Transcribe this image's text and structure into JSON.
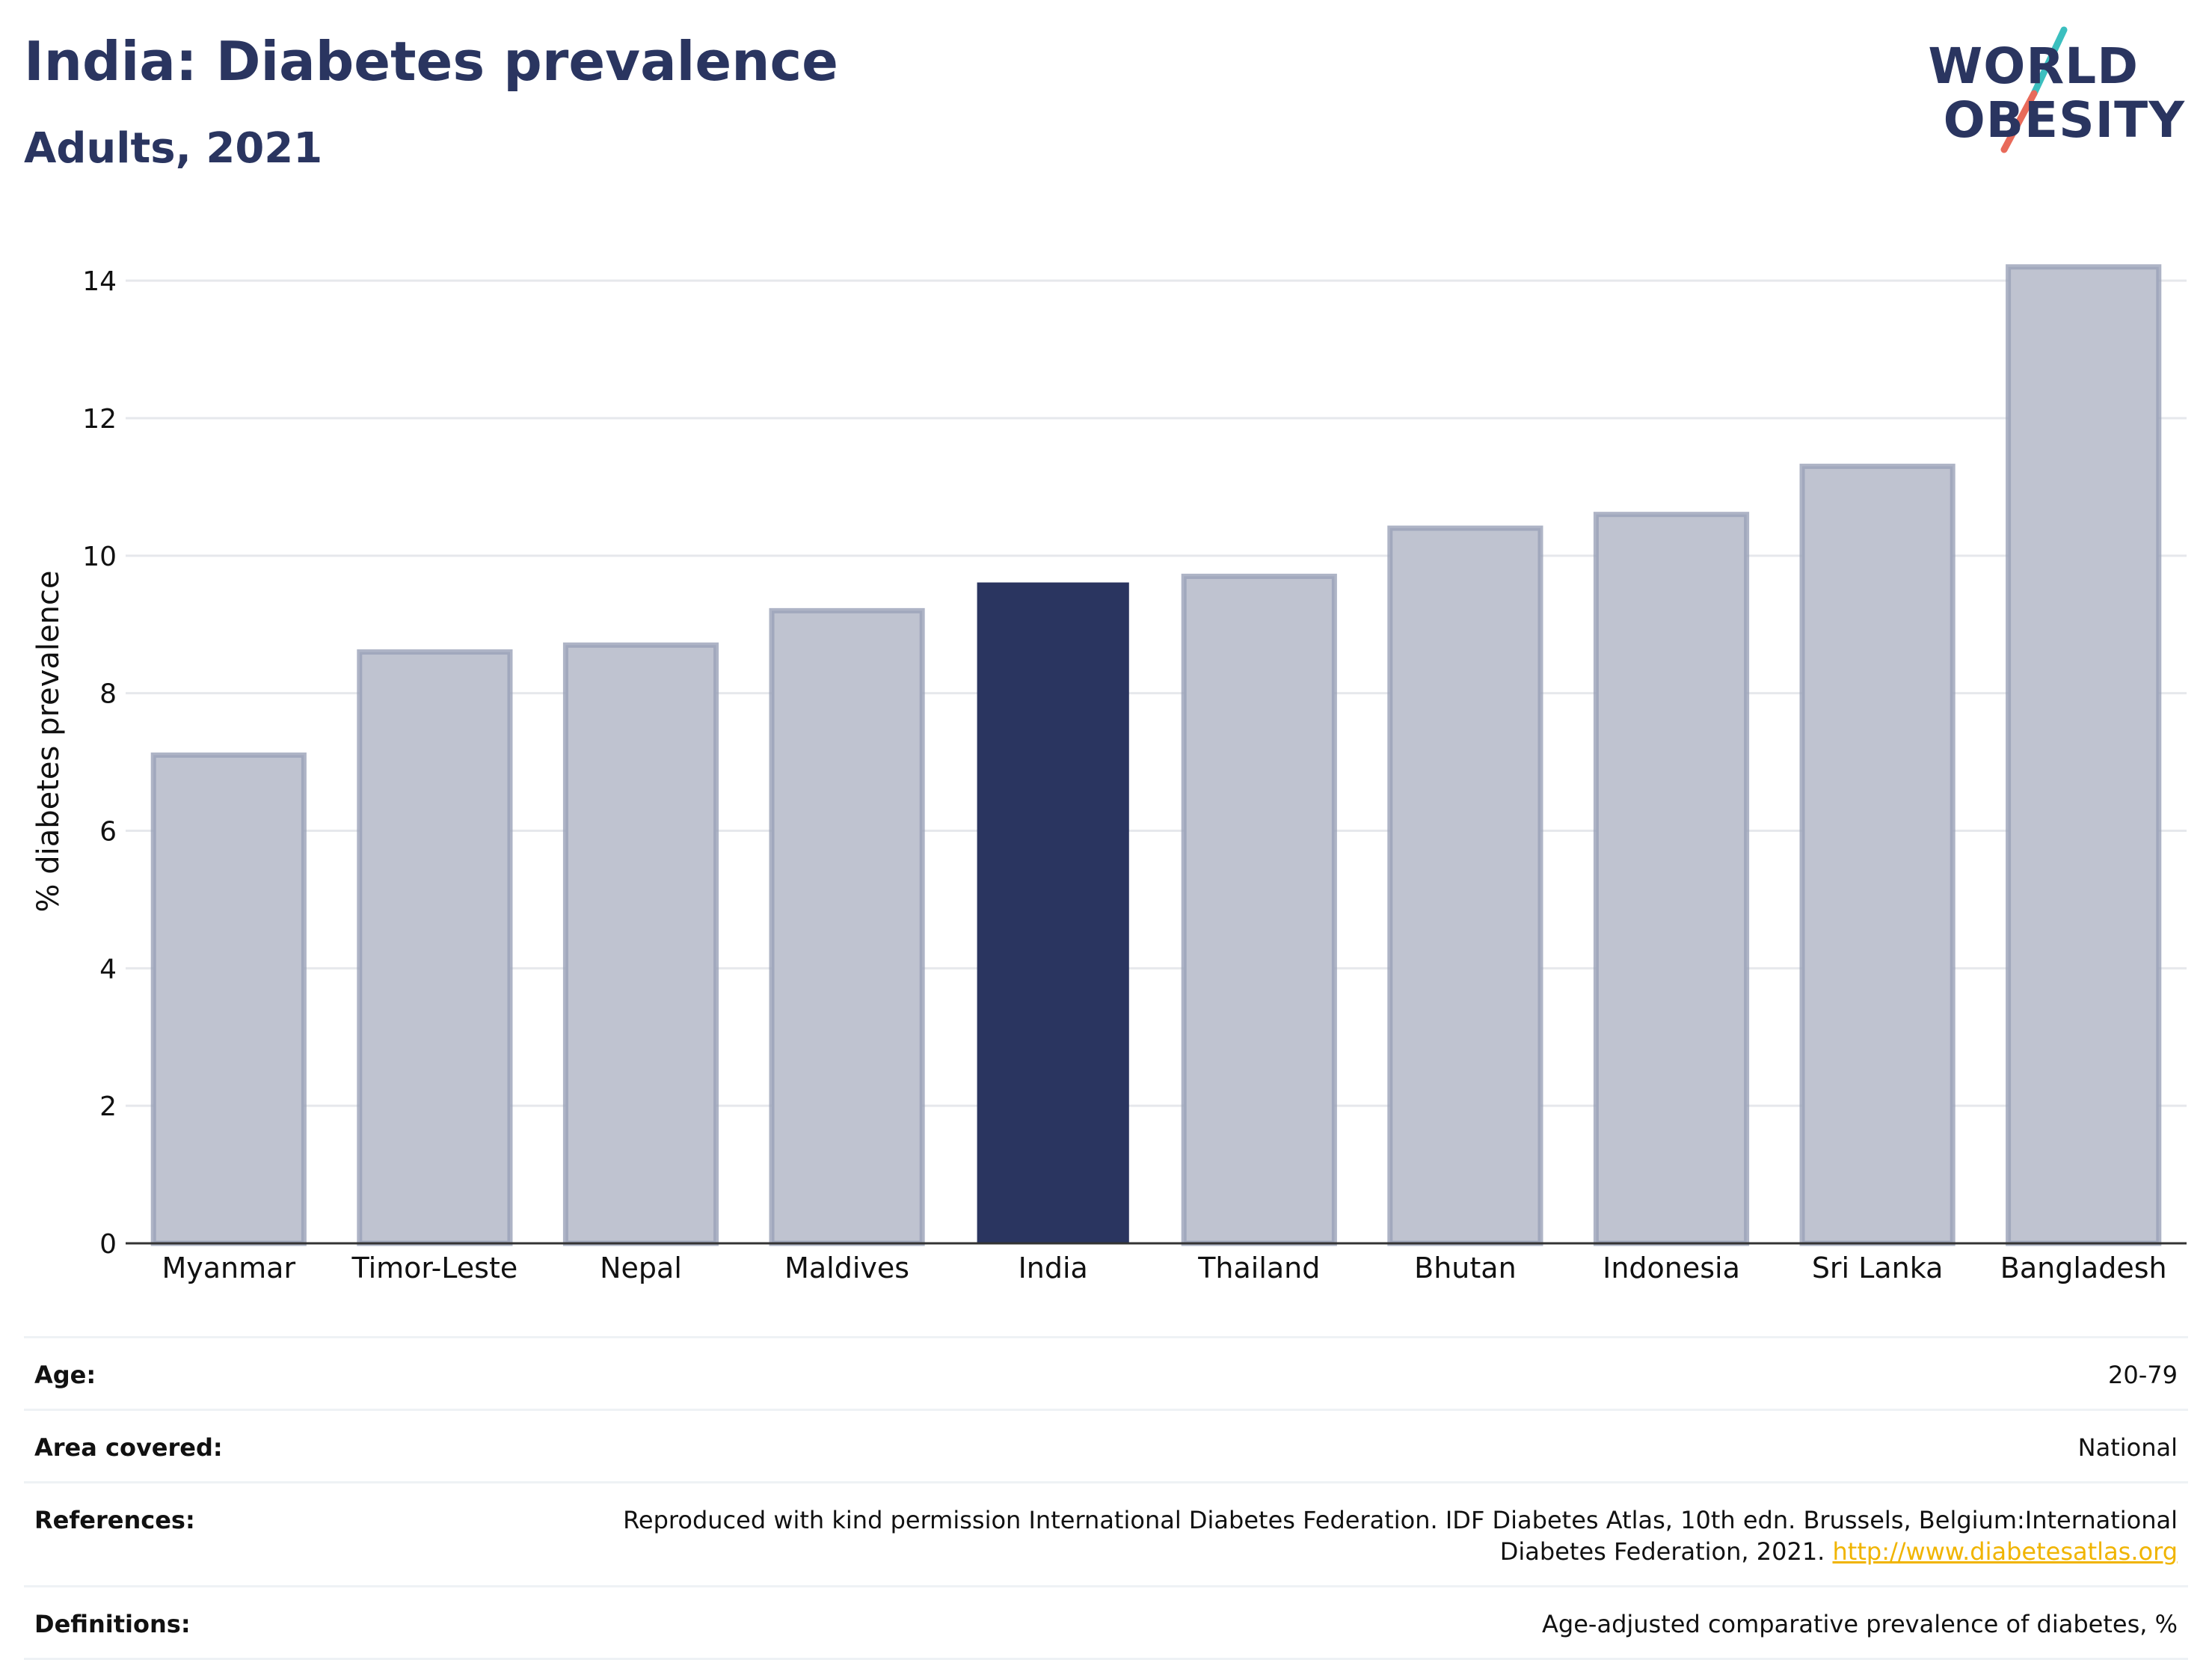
{
  "header": {
    "title": "India: Diabetes prevalence",
    "subtitle": "Adults, 2021"
  },
  "logo": {
    "line1": "WORLD",
    "line2": "OBESITY",
    "icon": "world-obesity-slash-logo",
    "slash_colors": [
      "#3bbfbf",
      "#e86a5a"
    ]
  },
  "chart_data": {
    "type": "bar",
    "title": "India: Diabetes prevalence",
    "subtitle": "Adults, 2021",
    "xlabel": "",
    "ylabel": "% diabetes prevalence",
    "ylim": [
      0,
      14.6
    ],
    "yticks": [
      0,
      2,
      4,
      6,
      8,
      10,
      12,
      14
    ],
    "categories": [
      "Myanmar",
      "Timor-Leste",
      "Nepal",
      "Maldives",
      "India",
      "Thailand",
      "Bhutan",
      "Indonesia",
      "Sri Lanka",
      "Bangladesh"
    ],
    "values": [
      7.1,
      8.6,
      8.7,
      9.2,
      9.6,
      9.7,
      10.4,
      10.6,
      11.3,
      14.2
    ],
    "highlight": "India",
    "grid": true,
    "colors": {
      "default_bar": "#bfc3d0",
      "default_border": "#9aa1b8",
      "highlight_bar": "#2a3560",
      "axis": "#333333",
      "grid": "#e6e8ec"
    }
  },
  "meta": {
    "rows": [
      {
        "label": "Age:",
        "value": "20-79"
      },
      {
        "label": "Area covered:",
        "value": "National"
      },
      {
        "label": "References:",
        "value": "Reproduced with kind permission International Diabetes Federation.  IDF Diabetes Atlas, 10th edn. Brussels, Belgium:International Diabetes Federation, 2021.",
        "link": "http://www.diabetesatlas.org"
      },
      {
        "label": "Definitions:",
        "value": "Age-adjusted comparative prevalence of diabetes, %"
      }
    ]
  }
}
